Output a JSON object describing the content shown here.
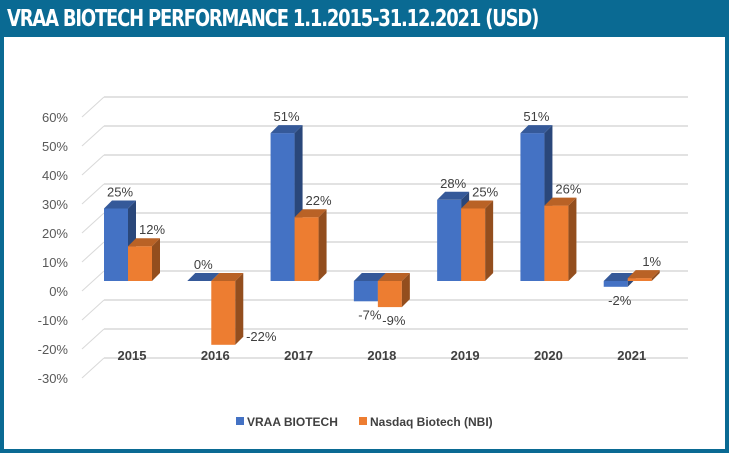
{
  "header": {
    "title": "VRAA BIOTECH  PERFORMANCE 1.1.2015-31.12.2021 (USD)"
  },
  "chart_data": {
    "type": "bar",
    "style": "3d-clustered-column",
    "title": "VRAA BIOTECH  PERFORMANCE 1.1.2015-31.12.2021 (USD)",
    "xlabel": "",
    "ylabel": "",
    "categories": [
      "2015",
      "2016",
      "2017",
      "2018",
      "2019",
      "2020",
      "2021"
    ],
    "series": [
      {
        "name": "VRAA BIOTECH",
        "color": "#4472c4",
        "values": [
          25,
          0,
          51,
          -7,
          28,
          51,
          -2
        ],
        "labels": [
          "25%",
          "0%",
          "51%",
          "-7%",
          "28%",
          "51%",
          "-2%"
        ]
      },
      {
        "name": "Nasdaq Biotech (NBI)",
        "color": "#ed7d31",
        "values": [
          12,
          -22,
          22,
          -9,
          25,
          26,
          1
        ],
        "labels": [
          "12%",
          "-22%",
          "22%",
          "-9%",
          "25%",
          "26%",
          "1%"
        ]
      }
    ],
    "ylim": [
      -30,
      60
    ],
    "yticks": [
      60,
      50,
      40,
      30,
      20,
      10,
      0,
      -10,
      -20,
      -30
    ],
    "ytick_labels": [
      "60%",
      "50%",
      "40%",
      "30%",
      "20%",
      "10%",
      "0%",
      "-10%",
      "-20%",
      "-30%"
    ],
    "grid": true,
    "legend_position": "bottom"
  }
}
